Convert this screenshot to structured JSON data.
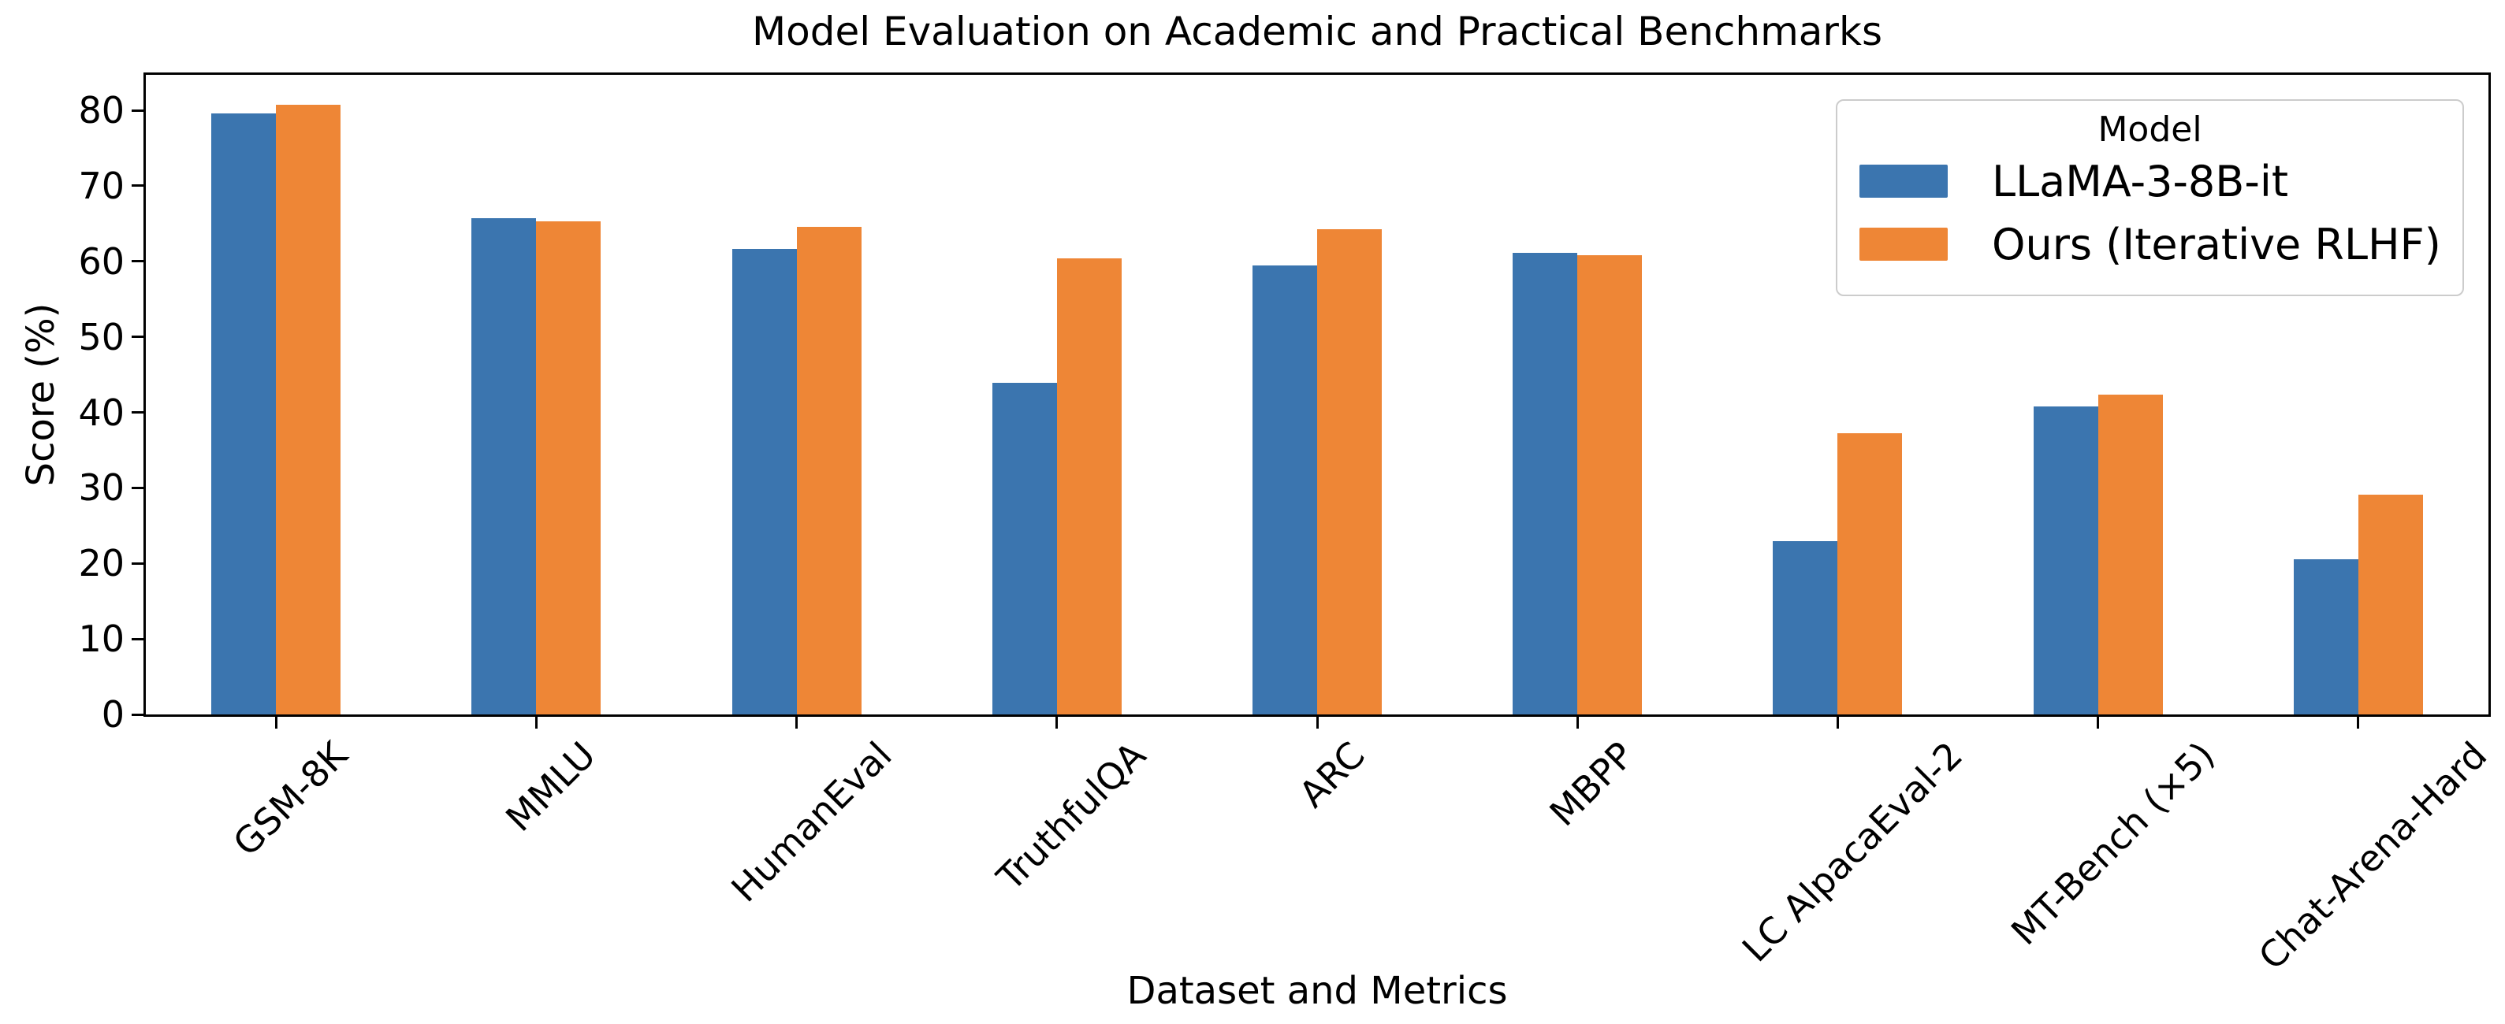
{
  "chart_data": {
    "type": "bar",
    "title": "Model Evaluation on Academic and Practical Benchmarks",
    "xlabel": "Dataset and Metrics",
    "ylabel": "Score (%)",
    "categories": [
      "GSM-8K",
      "MMLU",
      "HumanEval",
      "TruthfulQA",
      "ARC",
      "MBPP",
      "LC AlpacaEval-2",
      "MT-Bench (×5)",
      "Chat-Arena-Hard"
    ],
    "series": [
      {
        "name": "LLaMA-3-8B-it",
        "color": "#3B75AF",
        "values": [
          79.6,
          65.7,
          61.6,
          43.9,
          59.5,
          61.1,
          22.9,
          40.8,
          20.6
        ]
      },
      {
        "name": "Ours (Iterative RLHF)",
        "color": "#EE8636",
        "values": [
          80.7,
          65.3,
          64.6,
          60.4,
          64.3,
          60.8,
          37.2,
          42.3,
          29.1
        ]
      }
    ],
    "legend": {
      "title": "Model",
      "position": "upper-right"
    },
    "ylim": [
      0,
      84.7
    ],
    "yticks": [
      0,
      10,
      20,
      30,
      40,
      50,
      60,
      70,
      80
    ],
    "grid": false,
    "background": "#ffffff",
    "text_color": "#000000"
  }
}
